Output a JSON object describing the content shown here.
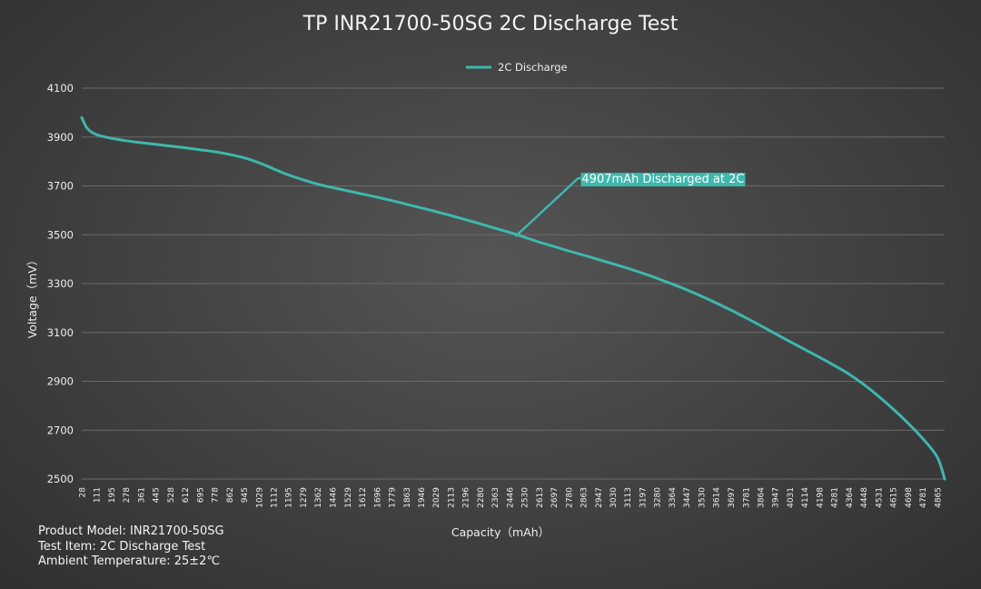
{
  "chart_data": {
    "type": "line",
    "title": "TP INR21700-50SG 2C Discharge Test",
    "xlabel": "Capacity（mAh）",
    "ylabel": "Voltage（mV）",
    "ylim": [
      2500,
      4100
    ],
    "yticks": [
      2500,
      2700,
      2900,
      3100,
      3300,
      3500,
      3700,
      3900,
      4100
    ],
    "xlim": [
      28,
      4907
    ],
    "xticks": [
      28,
      111,
      195,
      278,
      361,
      445,
      528,
      612,
      695,
      778,
      862,
      945,
      1029,
      1112,
      1195,
      1279,
      1362,
      1446,
      1529,
      1612,
      1696,
      1779,
      1863,
      1946,
      2029,
      2113,
      2196,
      2280,
      2363,
      2446,
      2530,
      2613,
      2697,
      2780,
      2863,
      2947,
      3030,
      3113,
      3197,
      3280,
      3364,
      3447,
      3530,
      3614,
      3697,
      3781,
      3864,
      3947,
      4031,
      4114,
      4198,
      4281,
      4364,
      4448,
      4531,
      4615,
      4698,
      4781,
      4865
    ],
    "grid": true,
    "legend_position": "top-center",
    "series": [
      {
        "name": "2C Discharge",
        "color": "#3db8ac",
        "x": [
          28,
          60,
          111,
          195,
          278,
          361,
          445,
          528,
          612,
          695,
          778,
          862,
          945,
          1029,
          1112,
          1195,
          1279,
          1362,
          1446,
          1529,
          1612,
          1696,
          1779,
          1863,
          1946,
          2029,
          2113,
          2196,
          2280,
          2363,
          2446,
          2530,
          2613,
          2697,
          2780,
          2863,
          2947,
          3030,
          3113,
          3197,
          3280,
          3364,
          3447,
          3530,
          3614,
          3697,
          3781,
          3864,
          3947,
          4031,
          4114,
          4198,
          4281,
          4364,
          4448,
          4531,
          4615,
          4698,
          4781,
          4865,
          4907
        ],
        "y": [
          3980,
          3935,
          3910,
          3895,
          3885,
          3877,
          3870,
          3863,
          3856,
          3848,
          3840,
          3829,
          3815,
          3795,
          3770,
          3745,
          3725,
          3707,
          3693,
          3680,
          3667,
          3654,
          3640,
          3625,
          3610,
          3595,
          3579,
          3562,
          3545,
          3527,
          3510,
          3490,
          3470,
          3452,
          3434,
          3417,
          3399,
          3381,
          3363,
          3343,
          3322,
          3299,
          3275,
          3249,
          3221,
          3192,
          3161,
          3129,
          3096,
          3063,
          3031,
          2999,
          2966,
          2930,
          2888,
          2840,
          2787,
          2730,
          2667,
          2590,
          2500
        ]
      }
    ],
    "annotation": {
      "text": "4907mAh Discharged at 2C",
      "x": 2480,
      "y": 3493,
      "background": "#3db8ac"
    }
  },
  "footer": {
    "product_model": "Product Model: INR21700-50SG",
    "test_item": "Test Item: 2C Discharge Test",
    "ambient_temperature": "Ambient Temperature: 25±2℃"
  }
}
